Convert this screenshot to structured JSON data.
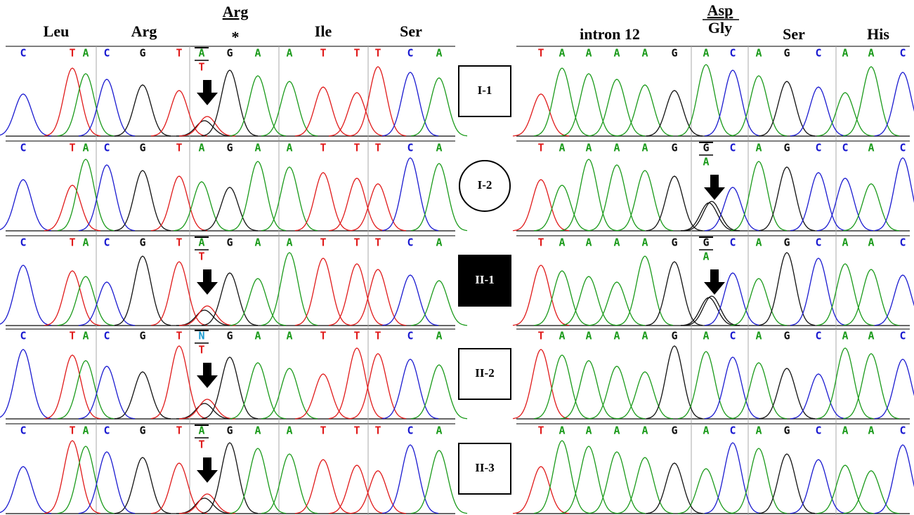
{
  "base_colors": {
    "A": "#1a9a1a",
    "C": "#1a1ad0",
    "G": "#111111",
    "T": "#e01a1a",
    "N": "#1a9ad0"
  },
  "left_headers": {
    "codons": [
      "Leu",
      "Arg",
      "Ile",
      "Ser"
    ],
    "mutant": {
      "codon": "Arg",
      "mark": "*"
    }
  },
  "right_headers": {
    "intron": "intron 12",
    "mutant": {
      "ref": "Asp",
      "alt": "Gly"
    },
    "codons": [
      "Ser",
      "His"
    ]
  },
  "rows": [
    {
      "individual": "I-1",
      "left": [
        "C",
        "T",
        "A",
        "C",
        "G",
        "T",
        {
          "base": "A",
          "alt": "T"
        },
        "G",
        "A",
        "A",
        "T",
        "T",
        "T",
        "C",
        "A"
      ],
      "right": [
        "T",
        "A",
        "A",
        "A",
        "A",
        "G",
        "A",
        "C",
        "A",
        "G",
        "C",
        "A",
        "A",
        "C"
      ]
    },
    {
      "individual": "I-2",
      "left": [
        "C",
        "T",
        "A",
        "C",
        "G",
        "T",
        "A",
        "G",
        "A",
        "A",
        "T",
        "T",
        "T",
        "C",
        "A"
      ],
      "right": [
        "T",
        "A",
        "A",
        "A",
        "A",
        "G",
        {
          "base": "G",
          "alt": "A"
        },
        "C",
        "A",
        "G",
        "C",
        "C",
        "A",
        "C"
      ]
    },
    {
      "individual": "II-1",
      "left": [
        "C",
        "T",
        "A",
        "C",
        "G",
        "T",
        {
          "base": "A",
          "alt": "T"
        },
        "G",
        "A",
        "A",
        "T",
        "T",
        "T",
        "C",
        "A"
      ],
      "right": [
        "T",
        "A",
        "A",
        "A",
        "A",
        "G",
        {
          "base": "G",
          "alt": "A"
        },
        "C",
        "A",
        "G",
        "C",
        "A",
        "A",
        "C"
      ]
    },
    {
      "individual": "II-2",
      "left": [
        "C",
        "T",
        "A",
        "C",
        "G",
        "T",
        {
          "base": "N",
          "alt": "T"
        },
        "G",
        "A",
        "A",
        "T",
        "T",
        "T",
        "C",
        "A"
      ],
      "right": [
        "T",
        "A",
        "A",
        "A",
        "A",
        "G",
        "A",
        "C",
        "A",
        "G",
        "C",
        "A",
        "A",
        "C"
      ]
    },
    {
      "individual": "II-3",
      "left": [
        "C",
        "T",
        "A",
        "C",
        "G",
        "T",
        {
          "base": "A",
          "alt": "T"
        },
        "G",
        "A",
        "A",
        "T",
        "T",
        "T",
        "C",
        "A"
      ],
      "right": [
        "T",
        "A",
        "A",
        "A",
        "A",
        "G",
        "A",
        "C",
        "A",
        "G",
        "C",
        "A",
        "A",
        "C"
      ]
    }
  ]
}
